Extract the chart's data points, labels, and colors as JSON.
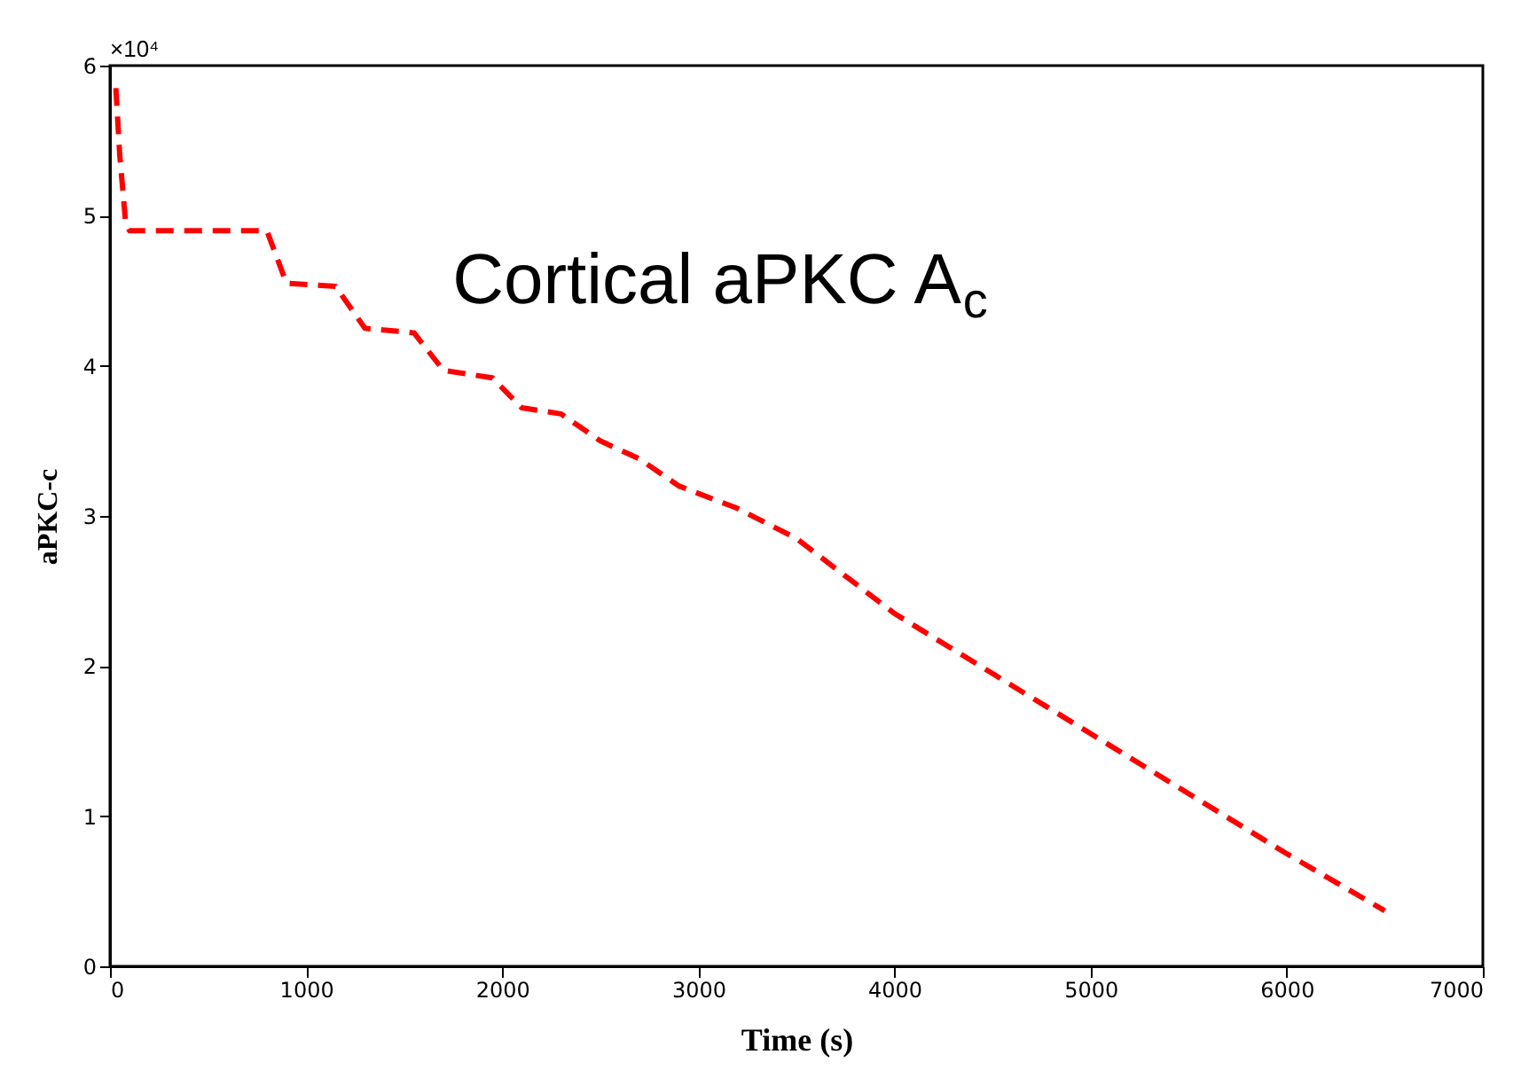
{
  "chart_data": {
    "type": "line",
    "xlabel": "Time (s)",
    "ylabel": "aPKC-c",
    "annotations": [
      "Cortical aPKC A$_{c}$",
      "×10⁴"
    ],
    "x": [
      30,
      50,
      80,
      100,
      800,
      900,
      1150,
      1300,
      1550,
      1700,
      1950,
      2100,
      2300,
      2500,
      2700,
      2900,
      3200,
      3500,
      4000,
      4500,
      5000,
      5500,
      6000,
      6500
    ],
    "series": [
      {
        "color": "#ff0000",
        "values": [
          5.85,
          5.4,
          4.95,
          4.9,
          4.9,
          4.55,
          4.53,
          4.25,
          4.22,
          3.97,
          3.92,
          3.72,
          3.68,
          3.5,
          3.38,
          3.2,
          3.05,
          2.85,
          2.35,
          1.95,
          1.55,
          1.15,
          0.75,
          0.37
        ]
      }
    ],
    "xlim": [
      0,
      7000
    ],
    "xticks": [
      0,
      1000,
      2000,
      3000,
      4000,
      5000,
      6000,
      7000
    ],
    "ylim": [
      0,
      6
    ],
    "yticks": [
      0,
      1,
      2,
      3,
      4,
      5,
      6
    ],
    "line_style": "dashed",
    "marker": "none",
    "grid": false
  }
}
